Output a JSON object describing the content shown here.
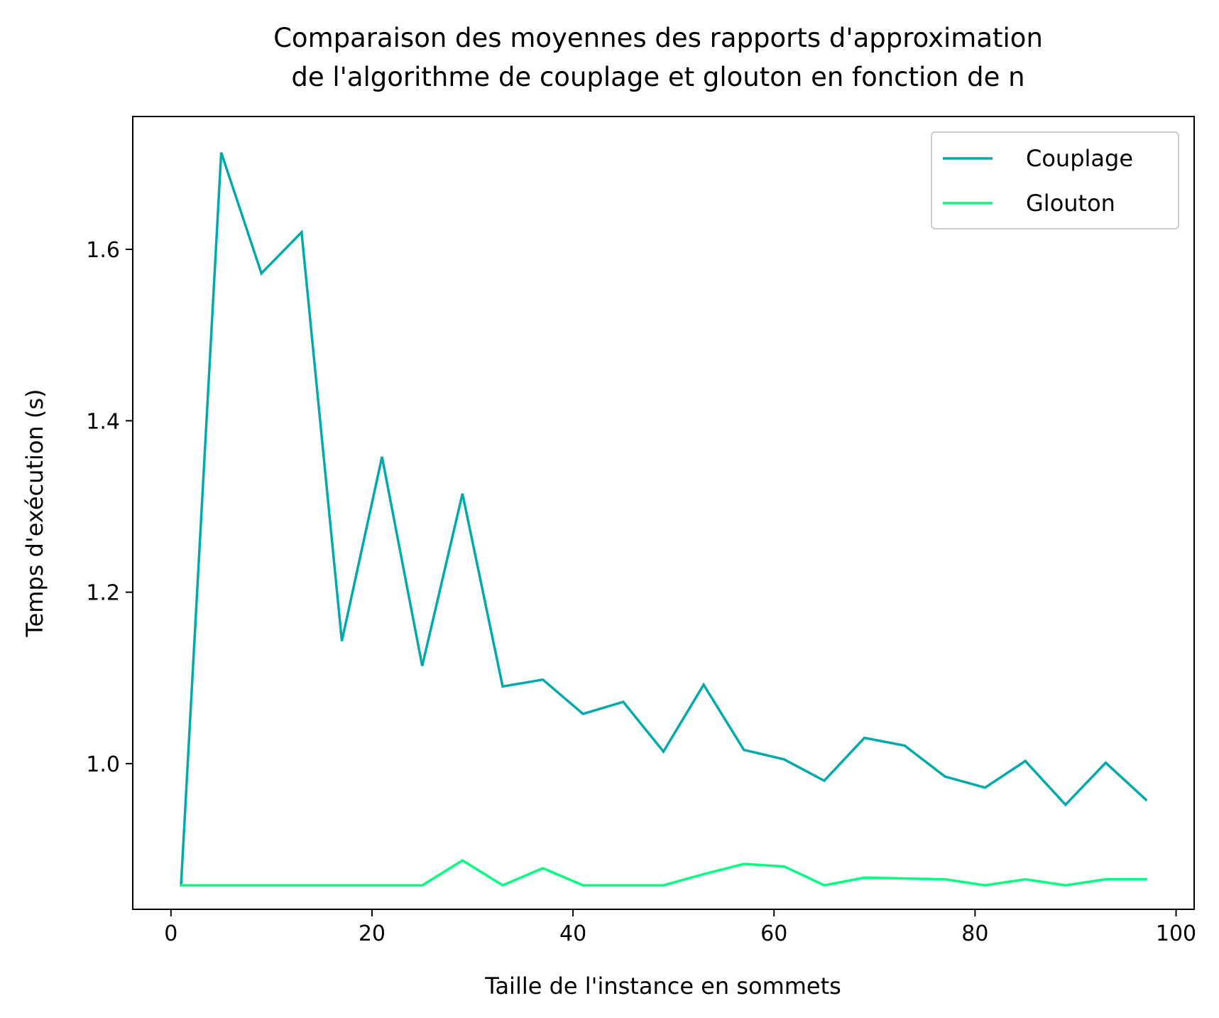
{
  "chart_data": {
    "type": "line",
    "title": "Comparaison des moyennes des rapports d'approximation",
    "subtitle": "de l'algorithme de couplage et glouton en fonction de n",
    "xlabel": "Taille de l'instance en sommets",
    "ylabel": "Temps d'exécution (s)",
    "xlim": [
      -3.8,
      101.8
    ],
    "ylim": [
      0.83,
      1.755
    ],
    "xticks": [
      0,
      20,
      40,
      60,
      80,
      100
    ],
    "xtick_labels": [
      "0",
      "20",
      "40",
      "60",
      "80",
      "100"
    ],
    "yticks": [
      1.0,
      1.2,
      1.4,
      1.6
    ],
    "ytick_labels": [
      "1.0",
      "1.2",
      "1.4",
      "1.6"
    ],
    "grid": false,
    "legend_position": "top-right",
    "x": [
      1,
      5,
      9,
      13,
      17,
      21,
      25,
      29,
      33,
      37,
      41,
      45,
      49,
      53,
      57,
      61,
      65,
      69,
      73,
      77,
      81,
      85,
      89,
      93,
      97
    ],
    "series": [
      {
        "name": "Couplage",
        "color": "#00aaaa",
        "values": [
          0.858,
          1.713,
          1.572,
          1.62,
          1.143,
          1.358,
          1.114,
          1.315,
          1.09,
          1.098,
          1.058,
          1.072,
          1.014,
          1.092,
          1.016,
          1.005,
          0.98,
          1.03,
          1.021,
          0.985,
          0.972,
          1.003,
          0.952,
          1.001,
          0.958
        ]
      },
      {
        "name": "Glouton",
        "color": "#00ff80",
        "values": [
          0.858,
          0.858,
          0.858,
          0.858,
          0.858,
          0.858,
          0.858,
          0.887,
          0.858,
          0.878,
          0.858,
          0.858,
          0.858,
          0.871,
          0.883,
          0.88,
          0.858,
          0.867,
          0.866,
          0.865,
          0.858,
          0.865,
          0.858,
          0.865,
          0.865
        ]
      }
    ]
  }
}
